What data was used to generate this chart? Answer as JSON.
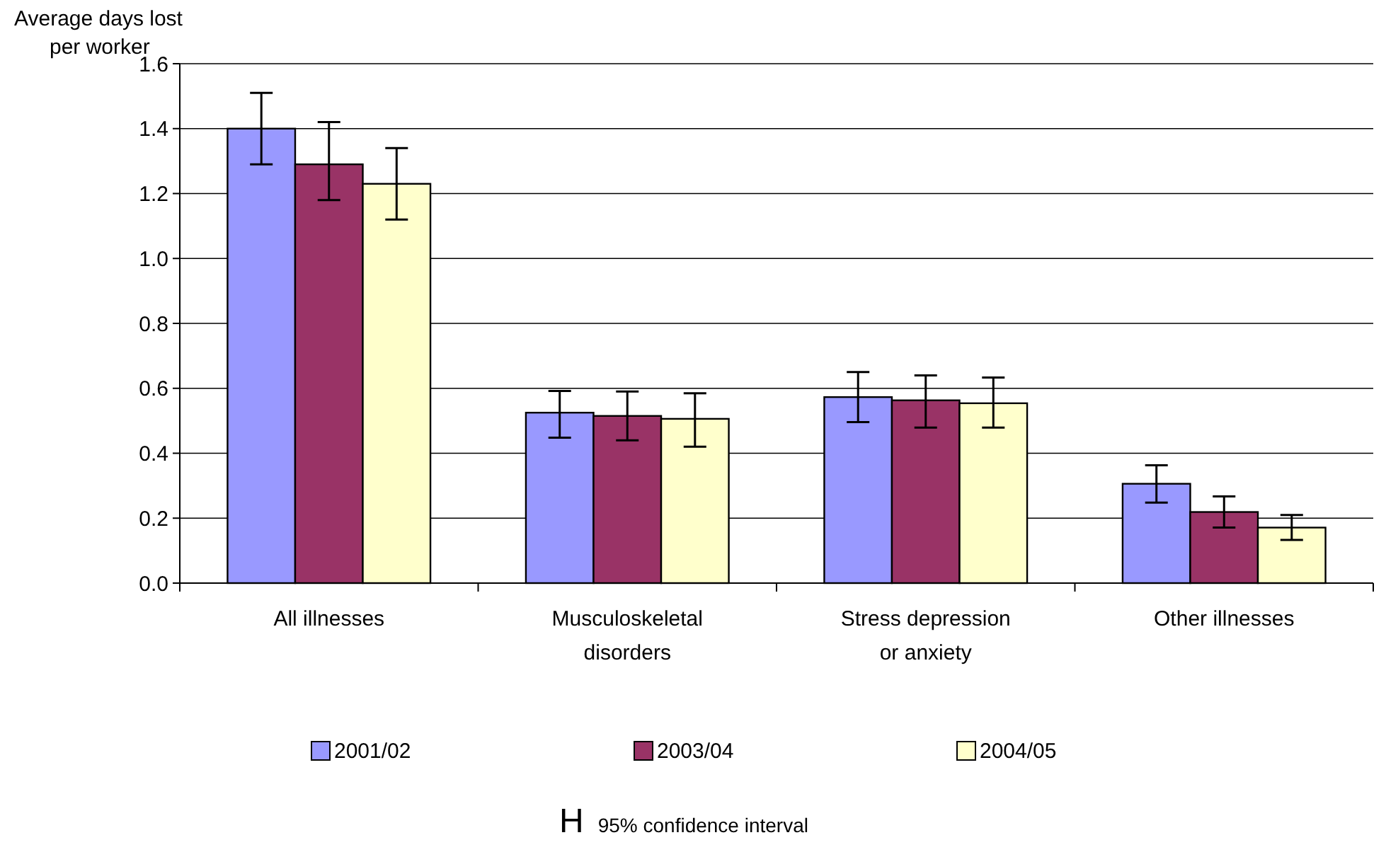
{
  "chart_data": {
    "type": "bar",
    "ylabel": "Average days lost\nper worker",
    "categories": [
      "All illnesses",
      "Musculoskeletal\ndisorders",
      "Stress depression\nor anxiety",
      "Other illnesses"
    ],
    "series": [
      {
        "name": "2001/02",
        "color": "#9999ff",
        "values": [
          1.4,
          0.525,
          0.573,
          0.306
        ],
        "errors": [
          [
            1.29,
            1.51
          ],
          [
            0.448,
            0.592
          ],
          [
            0.496,
            0.65
          ],
          [
            0.248,
            0.363
          ]
        ]
      },
      {
        "name": "2003/04",
        "color": "#993366",
        "values": [
          1.29,
          0.515,
          0.563,
          0.219
        ],
        "errors": [
          [
            1.18,
            1.42
          ],
          [
            0.44,
            0.59
          ],
          [
            0.479,
            0.64
          ],
          [
            0.171,
            0.267
          ]
        ]
      },
      {
        "name": "2004/05",
        "color": "#ffffcc",
        "values": [
          1.23,
          0.506,
          0.554,
          0.171
        ],
        "errors": [
          [
            1.12,
            1.34
          ],
          [
            0.42,
            0.585
          ],
          [
            0.479,
            0.633
          ],
          [
            0.133,
            0.21
          ]
        ]
      }
    ],
    "ylim": [
      0,
      1.6
    ],
    "yticks": [
      {
        "value": 0,
        "label": "0.0"
      },
      {
        "value": 0.2,
        "label": "0.2"
      },
      {
        "value": 0.4,
        "label": "0.4"
      },
      {
        "value": 0.6,
        "label": "0.6"
      },
      {
        "value": 0.8,
        "label": "0.8"
      },
      {
        "value": 1,
        "label": "1.0"
      },
      {
        "value": 1.2,
        "label": "1.2"
      },
      {
        "value": 1.4,
        "label": "1.4"
      },
      {
        "value": 1.6,
        "label": "1.6"
      }
    ],
    "grid": "y",
    "legend": "bottom",
    "annotations": [
      "H",
      "95% confidence interval"
    ]
  }
}
